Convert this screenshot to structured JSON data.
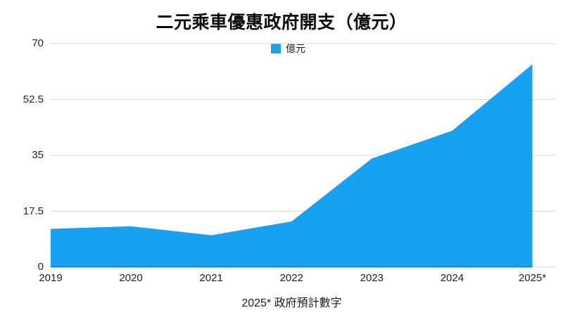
{
  "title": "二元乘車優惠政府開支（億元）",
  "legend": {
    "label": "億元",
    "color": "#16a2f3"
  },
  "footer": "2025* 政府預計數字",
  "colors": {
    "area": "#16a2f3",
    "baseline": "#0f87d7",
    "gridline": "#dadada"
  },
  "chart_data": {
    "type": "area",
    "title": "二元乘車優惠政府開支（億元）",
    "categories": [
      "2019",
      "2020",
      "2021",
      "2022",
      "2023",
      "2024",
      "2025*"
    ],
    "series": [
      {
        "name": "億元",
        "values": [
          12.0,
          12.8,
          10.0,
          14.3,
          34.0,
          42.7,
          63.5
        ]
      }
    ],
    "xlabel": "",
    "ylabel": "",
    "ylim": [
      0,
      70
    ],
    "y_ticks": [
      0,
      17.5,
      35,
      52.5,
      70
    ],
    "y_tick_labels": [
      "0",
      "17.5",
      "35",
      "52.5",
      "70"
    ],
    "grid": true,
    "legend_position": "top-center",
    "annotation": "2025* 政府預計數字"
  }
}
